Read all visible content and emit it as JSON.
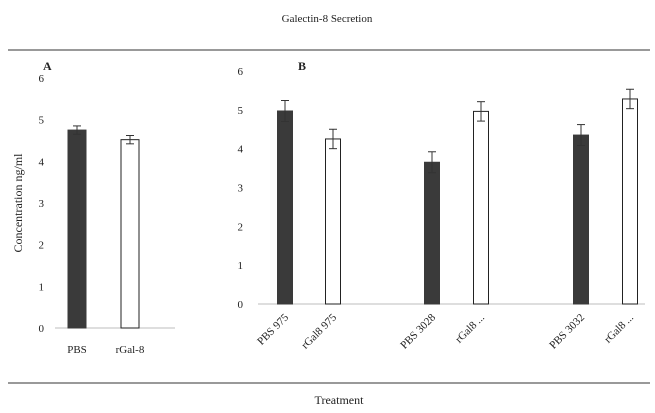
{
  "figure": {
    "title": "Galectin-8 Secretion",
    "ylabel": "Concentration ng/ml",
    "xlabel": "Treatment"
  },
  "colors": {
    "pbs": "#3a3a3a",
    "rgal": "#ffffff",
    "stroke": "#222222",
    "axis": "#bdbdbd"
  },
  "chart_data": [
    {
      "type": "bar",
      "panel_label": "A",
      "categories": [
        "PBS",
        "rGal-8"
      ],
      "values": [
        4.75,
        4.52
      ],
      "errors": [
        0.1,
        0.1
      ],
      "fills": [
        "pbs",
        "rgal"
      ],
      "ylim": [
        0,
        6
      ],
      "yticks": [
        0,
        1,
        2,
        3,
        4,
        5,
        6
      ],
      "grid": false
    },
    {
      "type": "bar",
      "panel_label": "B",
      "categories": [
        "PBS 975",
        "rGal8 975",
        "PBS 3028",
        "rGal8 ...",
        "PBS 3032",
        "rGal8 ..."
      ],
      "values": [
        4.97,
        4.25,
        3.65,
        4.96,
        4.35,
        5.28
      ],
      "errors": [
        0.27,
        0.25,
        0.27,
        0.25,
        0.27,
        0.25
      ],
      "fills": [
        "pbs",
        "rgal",
        "pbs",
        "rgal",
        "pbs",
        "rgal"
      ],
      "ylim": [
        0,
        6
      ],
      "yticks": [
        0,
        1,
        2,
        3,
        4,
        5,
        6
      ],
      "grid": false
    }
  ]
}
